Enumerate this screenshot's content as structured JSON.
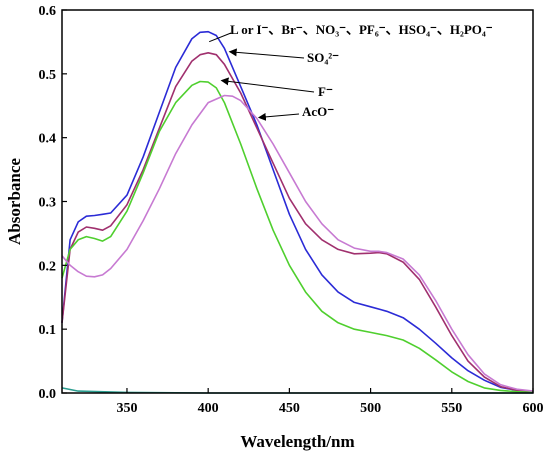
{
  "chart_data": {
    "type": "line",
    "xlabel": "Wavelength/nm",
    "ylabel": "Absorbance",
    "xlim": [
      310,
      600
    ],
    "ylim": [
      0.0,
      0.6
    ],
    "xticks": [
      "350",
      "400",
      "450",
      "500",
      "550",
      "600"
    ],
    "yticks": [
      "0.0",
      "0.1",
      "0.2",
      "0.3",
      "0.4",
      "0.5",
      "0.6"
    ],
    "grid": false,
    "series": [
      {
        "color": "#2b2bd6",
        "x": [
          310,
          315,
          320,
          325,
          330,
          335,
          340,
          350,
          360,
          370,
          380,
          390,
          395,
          400,
          405,
          410,
          420,
          430,
          440,
          450,
          460,
          470,
          480,
          490,
          500,
          510,
          520,
          530,
          540,
          550,
          560,
          570,
          580,
          590,
          600
        ],
        "y": [
          0.11,
          0.24,
          0.268,
          0.277,
          0.278,
          0.28,
          0.282,
          0.31,
          0.37,
          0.44,
          0.51,
          0.555,
          0.565,
          0.566,
          0.56,
          0.54,
          0.48,
          0.42,
          0.35,
          0.28,
          0.225,
          0.185,
          0.158,
          0.142,
          0.135,
          0.128,
          0.118,
          0.1,
          0.078,
          0.055,
          0.035,
          0.02,
          0.009,
          0.004,
          0.002
        ]
      },
      {
        "color": "#a0306e",
        "x": [
          310,
          315,
          320,
          325,
          330,
          335,
          340,
          350,
          360,
          370,
          380,
          390,
          395,
          400,
          405,
          410,
          420,
          430,
          440,
          450,
          460,
          470,
          480,
          490,
          500,
          505,
          510,
          520,
          530,
          540,
          550,
          560,
          570,
          580,
          590,
          600
        ],
        "y": [
          0.11,
          0.225,
          0.252,
          0.26,
          0.258,
          0.255,
          0.262,
          0.295,
          0.35,
          0.415,
          0.48,
          0.52,
          0.53,
          0.533,
          0.53,
          0.515,
          0.47,
          0.415,
          0.36,
          0.305,
          0.265,
          0.24,
          0.225,
          0.218,
          0.219,
          0.22,
          0.218,
          0.205,
          0.178,
          0.135,
          0.09,
          0.05,
          0.025,
          0.01,
          0.004,
          0.002
        ]
      },
      {
        "color": "#4fcf2e",
        "x": [
          310,
          315,
          320,
          325,
          330,
          335,
          340,
          350,
          360,
          370,
          380,
          390,
          395,
          400,
          405,
          410,
          420,
          430,
          440,
          450,
          460,
          470,
          480,
          490,
          500,
          510,
          520,
          530,
          540,
          550,
          560,
          570,
          580,
          590,
          600
        ],
        "y": [
          0.18,
          0.225,
          0.24,
          0.245,
          0.242,
          0.238,
          0.245,
          0.285,
          0.345,
          0.41,
          0.455,
          0.482,
          0.488,
          0.487,
          0.478,
          0.455,
          0.39,
          0.32,
          0.255,
          0.2,
          0.158,
          0.128,
          0.11,
          0.1,
          0.095,
          0.09,
          0.083,
          0.07,
          0.052,
          0.033,
          0.018,
          0.008,
          0.004,
          0.002,
          0.001
        ]
      },
      {
        "color": "#c77ad2",
        "x": [
          310,
          315,
          320,
          325,
          330,
          335,
          340,
          350,
          360,
          370,
          380,
          390,
          400,
          410,
          415,
          420,
          430,
          440,
          450,
          460,
          470,
          480,
          490,
          500,
          505,
          510,
          520,
          530,
          540,
          550,
          560,
          570,
          580,
          590,
          600
        ],
        "y": [
          0.215,
          0.2,
          0.19,
          0.183,
          0.182,
          0.185,
          0.195,
          0.225,
          0.27,
          0.32,
          0.375,
          0.42,
          0.455,
          0.466,
          0.465,
          0.458,
          0.43,
          0.39,
          0.345,
          0.3,
          0.265,
          0.24,
          0.227,
          0.222,
          0.222,
          0.22,
          0.21,
          0.185,
          0.145,
          0.1,
          0.06,
          0.03,
          0.013,
          0.006,
          0.003
        ]
      },
      {
        "color": "#2a9d8f",
        "x": [
          310,
          320,
          350,
          400,
          450,
          500,
          550,
          600
        ],
        "y": [
          0.008,
          0.003,
          0.001,
          0.0,
          0.0,
          0.0,
          0.0,
          0.0
        ]
      }
    ],
    "annotations": [
      {
        "text": "L or I⁻、Br⁻、NO₃⁻、PF₆⁻、HSO₄⁻、H₂PO₄⁻",
        "target": [
          400,
          0.566
        ]
      },
      {
        "text": "SO₄²⁻",
        "target": [
          412,
          0.533
        ]
      },
      {
        "text": "F⁻",
        "target": [
          407,
          0.488
        ]
      },
      {
        "text": "AcO⁻",
        "target": [
          430,
          0.43
        ]
      }
    ]
  }
}
